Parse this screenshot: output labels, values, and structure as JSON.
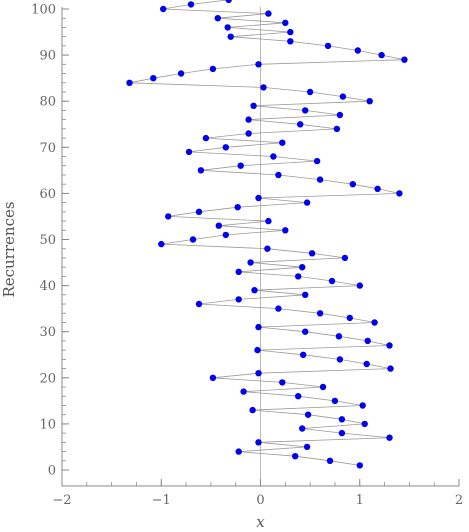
{
  "chart_data": {
    "type": "scatter",
    "title": "",
    "xlabel": "x",
    "ylabel": "Recurrences",
    "xlim": [
      -2,
      2
    ],
    "ylim": [
      0,
      100
    ],
    "xticks": [
      -2,
      -1,
      0,
      1,
      2
    ],
    "yticks": [
      0,
      10,
      20,
      30,
      40,
      50,
      60,
      70,
      80,
      90,
      100
    ],
    "x_minor_step": 0.25,
    "y_minor_step": 2,
    "grid": false,
    "vertical_reference_line_x": 0,
    "connected_in_order": true,
    "colors": {
      "points": "#0000ee",
      "connecting_line": "#9a9a9a",
      "axes": "#888888"
    },
    "points": [
      {
        "y": 1,
        "x": 1.0
      },
      {
        "y": 2,
        "x": 0.7
      },
      {
        "y": 3,
        "x": 0.35
      },
      {
        "y": 4,
        "x": -0.22
      },
      {
        "y": 5,
        "x": 0.47
      },
      {
        "y": 6,
        "x": -0.02
      },
      {
        "y": 7,
        "x": 1.3
      },
      {
        "y": 8,
        "x": 0.82
      },
      {
        "y": 9,
        "x": 0.42
      },
      {
        "y": 10,
        "x": 1.05
      },
      {
        "y": 11,
        "x": 0.82
      },
      {
        "y": 12,
        "x": 0.48
      },
      {
        "y": 13,
        "x": -0.08
      },
      {
        "y": 14,
        "x": 1.03
      },
      {
        "y": 15,
        "x": 0.75
      },
      {
        "y": 16,
        "x": 0.38
      },
      {
        "y": 17,
        "x": -0.17
      },
      {
        "y": 18,
        "x": 0.63
      },
      {
        "y": 19,
        "x": 0.22
      },
      {
        "y": 20,
        "x": -0.48
      },
      {
        "y": 21,
        "x": -0.02
      },
      {
        "y": 22,
        "x": 1.31
      },
      {
        "y": 23,
        "x": 1.07
      },
      {
        "y": 24,
        "x": 0.8
      },
      {
        "y": 25,
        "x": 0.43
      },
      {
        "y": 26,
        "x": -0.03
      },
      {
        "y": 27,
        "x": 1.3
      },
      {
        "y": 28,
        "x": 1.08
      },
      {
        "y": 29,
        "x": 0.79
      },
      {
        "y": 30,
        "x": 0.45
      },
      {
        "y": 31,
        "x": -0.02
      },
      {
        "y": 32,
        "x": 1.15
      },
      {
        "y": 33,
        "x": 0.9
      },
      {
        "y": 34,
        "x": 0.6
      },
      {
        "y": 35,
        "x": 0.18
      },
      {
        "y": 36,
        "x": -0.62
      },
      {
        "y": 37,
        "x": -0.22
      },
      {
        "y": 38,
        "x": 0.45
      },
      {
        "y": 39,
        "x": -0.06
      },
      {
        "y": 40,
        "x": 1.0
      },
      {
        "y": 41,
        "x": 0.72
      },
      {
        "y": 42,
        "x": 0.38
      },
      {
        "y": 43,
        "x": -0.22
      },
      {
        "y": 44,
        "x": 0.42
      },
      {
        "y": 45,
        "x": -0.1
      },
      {
        "y": 46,
        "x": 0.85
      },
      {
        "y": 47,
        "x": 0.52
      },
      {
        "y": 48,
        "x": 0.07
      },
      {
        "y": 49,
        "x": -1.0
      },
      {
        "y": 50,
        "x": -0.68
      },
      {
        "y": 51,
        "x": -0.35
      },
      {
        "y": 52,
        "x": 0.25
      },
      {
        "y": 53,
        "x": -0.42
      },
      {
        "y": 54,
        "x": 0.08
      },
      {
        "y": 55,
        "x": -0.93
      },
      {
        "y": 56,
        "x": -0.62
      },
      {
        "y": 57,
        "x": -0.23
      },
      {
        "y": 58,
        "x": 0.47
      },
      {
        "y": 59,
        "x": -0.02
      },
      {
        "y": 60,
        "x": 1.4
      },
      {
        "y": 61,
        "x": 1.18
      },
      {
        "y": 62,
        "x": 0.93
      },
      {
        "y": 63,
        "x": 0.6
      },
      {
        "y": 64,
        "x": 0.18
      },
      {
        "y": 65,
        "x": -0.6
      },
      {
        "y": 66,
        "x": -0.2
      },
      {
        "y": 67,
        "x": 0.57
      },
      {
        "y": 68,
        "x": 0.13
      },
      {
        "y": 69,
        "x": -0.72
      },
      {
        "y": 70,
        "x": -0.35
      },
      {
        "y": 71,
        "x": 0.22
      },
      {
        "y": 72,
        "x": -0.55
      },
      {
        "y": 73,
        "x": -0.12
      },
      {
        "y": 74,
        "x": 0.77
      },
      {
        "y": 75,
        "x": 0.4
      },
      {
        "y": 76,
        "x": -0.12
      },
      {
        "y": 77,
        "x": 0.8
      },
      {
        "y": 78,
        "x": 0.45
      },
      {
        "y": 79,
        "x": -0.07
      },
      {
        "y": 80,
        "x": 1.1
      },
      {
        "y": 81,
        "x": 0.83
      },
      {
        "y": 82,
        "x": 0.5
      },
      {
        "y": 83,
        "x": 0.03
      },
      {
        "y": 84,
        "x": -1.32
      },
      {
        "y": 85,
        "x": -1.08
      },
      {
        "y": 86,
        "x": -0.8
      },
      {
        "y": 87,
        "x": -0.48
      },
      {
        "y": 88,
        "x": -0.02
      },
      {
        "y": 89,
        "x": 1.45
      },
      {
        "y": 90,
        "x": 1.22
      },
      {
        "y": 91,
        "x": 0.98
      },
      {
        "y": 92,
        "x": 0.68
      },
      {
        "y": 93,
        "x": 0.3
      },
      {
        "y": 94,
        "x": -0.3
      },
      {
        "y": 95,
        "x": 0.3
      },
      {
        "y": 96,
        "x": -0.33
      },
      {
        "y": 97,
        "x": 0.25
      },
      {
        "y": 98,
        "x": -0.43
      },
      {
        "y": 99,
        "x": 0.08
      },
      {
        "y": 100,
        "x": -0.98
      },
      {
        "y": 101,
        "x": -0.7
      },
      {
        "y": 102,
        "x": -0.32
      }
    ]
  }
}
